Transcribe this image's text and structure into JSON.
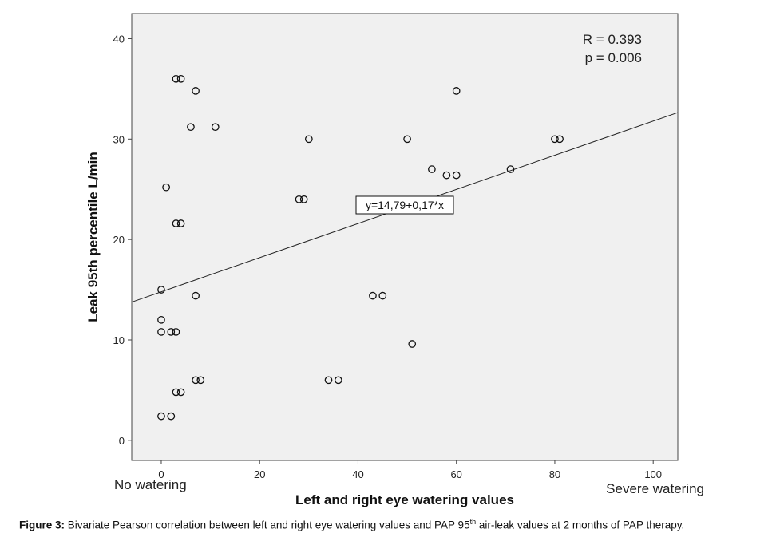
{
  "chart_data": {
    "type": "scatter",
    "xlabel": "Left and right eye watering values",
    "ylabel": "Leak 95th percentile L/min",
    "xlim": [
      -6,
      105
    ],
    "ylim": [
      -2,
      42.5
    ],
    "x_ticks": [
      0,
      20,
      40,
      60,
      80,
      100
    ],
    "y_ticks": [
      0,
      10,
      20,
      30,
      40
    ],
    "x_tick_labels": [
      "0",
      "20",
      "40",
      "60",
      "80",
      "100"
    ],
    "y_tick_labels": [
      "0",
      "10",
      "20",
      "30",
      "40"
    ],
    "x_anchor_labels": {
      "left": "No watering",
      "right": "Severe watering"
    },
    "grid": false,
    "background": "#f0f0f0",
    "marker": "open-circle",
    "stats": {
      "r_text": "R = 0.393",
      "p_text": "p = 0.006"
    },
    "fit_line": {
      "label": "y=14,79+0,17*x",
      "intercept": 14.79,
      "slope": 0.17
    },
    "points": [
      [
        3,
        36
      ],
      [
        4,
        36
      ],
      [
        7,
        34.8
      ],
      [
        60,
        34.8
      ],
      [
        6,
        31.2
      ],
      [
        11,
        31.2
      ],
      [
        30,
        30
      ],
      [
        50,
        30
      ],
      [
        80,
        30
      ],
      [
        81,
        30
      ],
      [
        55,
        27
      ],
      [
        71,
        27
      ],
      [
        58,
        26.4
      ],
      [
        60,
        26.4
      ],
      [
        1,
        25.2
      ],
      [
        28,
        24
      ],
      [
        29,
        24
      ],
      [
        3,
        21.6
      ],
      [
        4,
        21.6
      ],
      [
        0,
        15
      ],
      [
        7,
        14.4
      ],
      [
        43,
        14.4
      ],
      [
        45,
        14.4
      ],
      [
        0,
        12
      ],
      [
        0,
        10.8
      ],
      [
        2,
        10.8
      ],
      [
        3,
        10.8
      ],
      [
        51,
        9.6
      ],
      [
        7,
        6
      ],
      [
        8,
        6
      ],
      [
        34,
        6
      ],
      [
        36,
        6
      ],
      [
        3,
        4.8
      ],
      [
        4,
        4.8
      ],
      [
        0,
        2.4
      ],
      [
        2,
        2.4
      ]
    ]
  },
  "caption": {
    "label": "Figure 3:",
    "text_before": " Bivariate Pearson correlation between left and right eye watering values and PAP 95",
    "superscript": "th",
    "text_after": " air-leak values at 2 months of PAP therapy."
  }
}
